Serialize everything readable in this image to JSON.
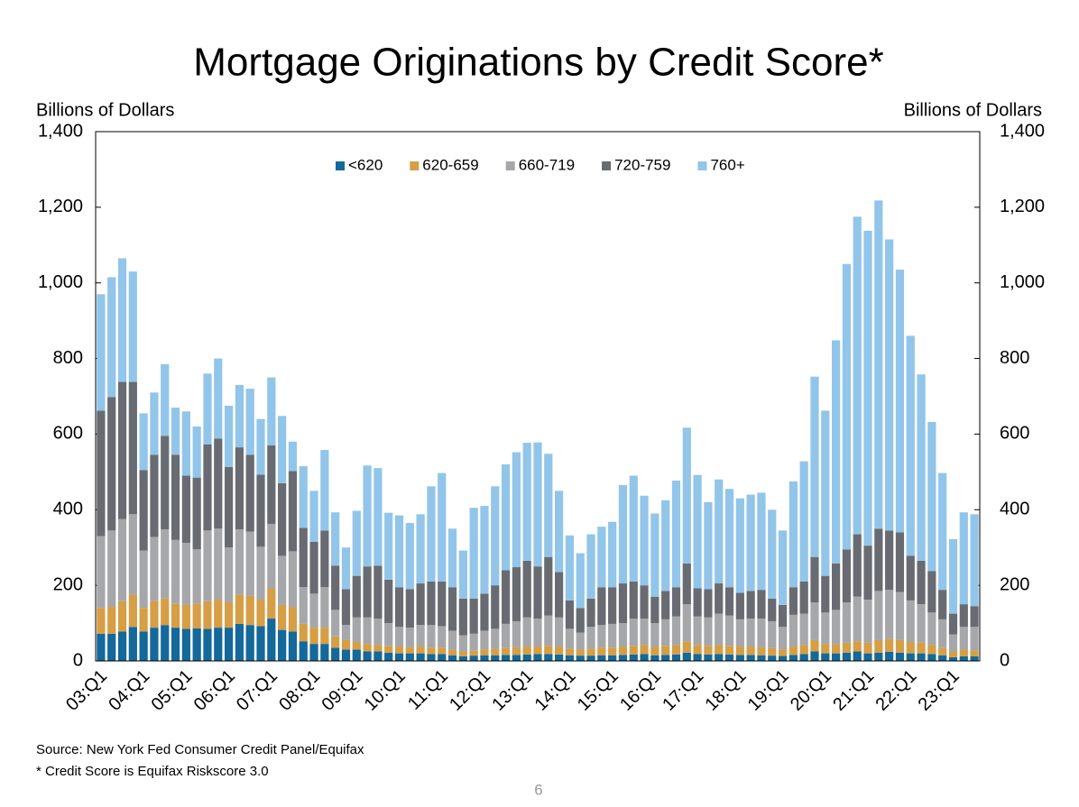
{
  "chart_data": {
    "type": "stacked_bar",
    "title": "Mortgage Originations by Credit Score*",
    "y_label": "Billions of Dollars",
    "y2_label": "Billions of Dollars",
    "source": "Source: New York Fed Consumer Credit Panel/Equifax",
    "note": "* Credit Score is Equifax Riskscore 3.0",
    "page_number": "6",
    "legend": "top",
    "categories": [
      "03:Q1",
      null,
      null,
      null,
      "04:Q1",
      null,
      null,
      null,
      "05:Q1",
      null,
      null,
      null,
      "06:Q1",
      null,
      null,
      null,
      "07:Q1",
      null,
      null,
      null,
      "08:Q1",
      null,
      null,
      null,
      "09:Q1",
      null,
      null,
      null,
      "10:Q1",
      null,
      null,
      null,
      "11:Q1",
      null,
      null,
      null,
      "12:Q1",
      null,
      null,
      null,
      "13:Q1",
      null,
      null,
      null,
      "14:Q1",
      null,
      null,
      null,
      "15:Q1",
      null,
      null,
      null,
      "16:Q1",
      null,
      null,
      null,
      "17:Q1",
      null,
      null,
      null,
      "18:Q1",
      null,
      null,
      null,
      "19:Q1",
      null,
      null,
      null,
      "20:Q1",
      null,
      null,
      null,
      "21:Q1",
      null,
      null,
      null,
      "22:Q1",
      null,
      null,
      null,
      "23:Q1",
      null,
      null
    ],
    "ylim": [
      0,
      1400
    ],
    "yticks": [
      0,
      200,
      400,
      600,
      800,
      {
        "value": 1000,
        "label": "1,000"
      },
      {
        "value": 1200,
        "label": "1,200"
      },
      {
        "value": 1400,
        "label": "1,400"
      }
    ],
    "y2lim": [
      0,
      1400
    ],
    "y2ticks": [
      0,
      200,
      400,
      600,
      800,
      {
        "value": 1000,
        "label": "1,000"
      },
      {
        "value": 1200,
        "label": "1,200"
      },
      {
        "value": 1400,
        "label": "1,400"
      }
    ],
    "series": [
      {
        "name": "<620",
        "color": "#14689a",
        "values": [
          72,
          72,
          78,
          90,
          78,
          88,
          95,
          88,
          85,
          86,
          85,
          88,
          88,
          98,
          95,
          92,
          112,
          82,
          78,
          52,
          45,
          45,
          35,
          30,
          30,
          25,
          25,
          22,
          20,
          20,
          20,
          18,
          18,
          15,
          12,
          14,
          15,
          15,
          16,
          16,
          17,
          18,
          18,
          17,
          15,
          14,
          14,
          15,
          15,
          16,
          17,
          18,
          15,
          16,
          17,
          22,
          18,
          17,
          18,
          17,
          16,
          16,
          15,
          14,
          13,
          16,
          18,
          25,
          20,
          20,
          22,
          25,
          20,
          22,
          24,
          22,
          20,
          20,
          18,
          15,
          10,
          12,
          12
        ]
      },
      {
        "name": "620-659",
        "color": "#d69e45",
        "values": [
          68,
          71,
          80,
          85,
          62,
          70,
          70,
          64,
          63,
          66,
          73,
          74,
          67,
          77,
          77,
          70,
          80,
          66,
          64,
          46,
          43,
          43,
          30,
          25,
          20,
          20,
          17,
          18,
          18,
          16,
          18,
          17,
          17,
          15,
          13,
          14,
          15,
          17,
          18,
          20,
          21,
          20,
          22,
          21,
          18,
          16,
          18,
          20,
          20,
          22,
          23,
          24,
          23,
          24,
          25,
          30,
          24,
          23,
          24,
          23,
          22,
          22,
          21,
          20,
          17,
          22,
          24,
          30,
          25,
          25,
          26,
          27,
          28,
          33,
          34,
          33,
          30,
          28,
          24,
          20,
          15,
          18,
          16
        ]
      },
      {
        "name": "660-719",
        "color": "#a5a7aa",
        "values": [
          190,
          202,
          217,
          213,
          152,
          170,
          183,
          168,
          164,
          143,
          187,
          188,
          145,
          173,
          170,
          140,
          170,
          130,
          148,
          97,
          90,
          107,
          70,
          40,
          65,
          70,
          70,
          60,
          52,
          52,
          57,
          60,
          57,
          50,
          43,
          44,
          50,
          53,
          64,
          69,
          77,
          74,
          80,
          77,
          52,
          45,
          58,
          60,
          63,
          62,
          72,
          70,
          62,
          70,
          76,
          98,
          76,
          75,
          83,
          80,
          72,
          74,
          76,
          71,
          60,
          84,
          83,
          100,
          83,
          90,
          107,
          118,
          114,
          130,
          130,
          127,
          110,
          102,
          86,
          75,
          45,
          60,
          62
        ]
      },
      {
        "name": "720-759",
        "color": "#686c72",
        "values": [
          332,
          353,
          363,
          350,
          213,
          217,
          247,
          225,
          178,
          190,
          228,
          238,
          213,
          217,
          203,
          191,
          208,
          192,
          212,
          157,
          137,
          150,
          117,
          95,
          110,
          135,
          140,
          115,
          105,
          102,
          110,
          115,
          118,
          115,
          97,
          93,
          98,
          115,
          142,
          143,
          150,
          138,
          155,
          120,
          75,
          65,
          75,
          100,
          97,
          105,
          98,
          88,
          70,
          75,
          77,
          108,
          74,
          75,
          80,
          75,
          70,
          73,
          76,
          60,
          58,
          73,
          85,
          120,
          97,
          123,
          140,
          165,
          143,
          165,
          157,
          158,
          118,
          115,
          110,
          78,
          55,
          60,
          55
        ]
      },
      {
        "name": "760+",
        "color": "#92c5ea",
        "values": [
          308,
          317,
          327,
          292,
          150,
          165,
          190,
          125,
          170,
          135,
          187,
          212,
          162,
          165,
          175,
          147,
          180,
          178,
          78,
          163,
          135,
          213,
          141,
          110,
          172,
          267,
          258,
          177,
          190,
          175,
          183,
          252,
          287,
          155,
          127,
          240,
          232,
          262,
          280,
          304,
          312,
          328,
          273,
          215,
          172,
          145,
          170,
          160,
          173,
          260,
          280,
          237,
          220,
          240,
          282,
          359,
          300,
          230,
          275,
          260,
          250,
          255,
          257,
          235,
          197,
          280,
          318,
          477,
          437,
          590,
          755,
          840,
          833,
          868,
          770,
          695,
          582,
          493,
          394,
          309,
          197,
          243,
          243
        ]
      }
    ]
  }
}
